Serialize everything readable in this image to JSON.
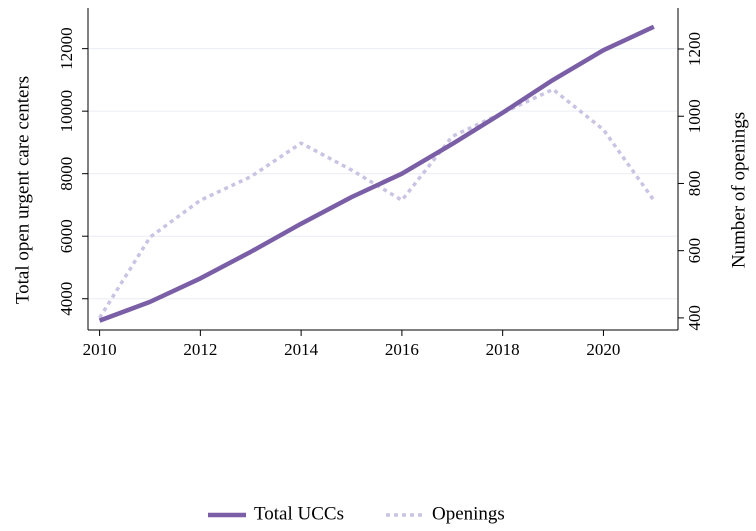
{
  "chart_data": {
    "type": "line",
    "x": [
      2010,
      2011,
      2012,
      2013,
      2014,
      2015,
      2016,
      2017,
      2018,
      2019,
      2020,
      2021
    ],
    "series": [
      {
        "name": "Total UCCs",
        "color": "#7a5fa6",
        "values": [
          3300,
          3900,
          4650,
          5500,
          6400,
          7250,
          8000,
          8950,
          9950,
          11000,
          11950,
          12700
        ]
      },
      {
        "name": "Openings",
        "color": "#cbc3e3",
        "axis": "y2",
        "dashed": true,
        "values": [
          400,
          640,
          750,
          820,
          920,
          840,
          750,
          940,
          1010,
          1080,
          960,
          750
        ]
      }
    ],
    "ylabel": "Total open urgent care centers",
    "y2label": "Number of openings",
    "xlim": [
      2009.77,
      2021.48
    ],
    "xticks": [
      2010,
      2012,
      2014,
      2016,
      2018,
      2020
    ],
    "ylim": [
      3000,
      13300
    ],
    "yticks": [
      4000,
      6000,
      8000,
      10000,
      12000
    ],
    "y2lim": [
      364,
      1322
    ],
    "y2ticks": [
      400,
      600,
      800,
      1000,
      1200
    ],
    "grid": true,
    "legend": "bottom"
  }
}
